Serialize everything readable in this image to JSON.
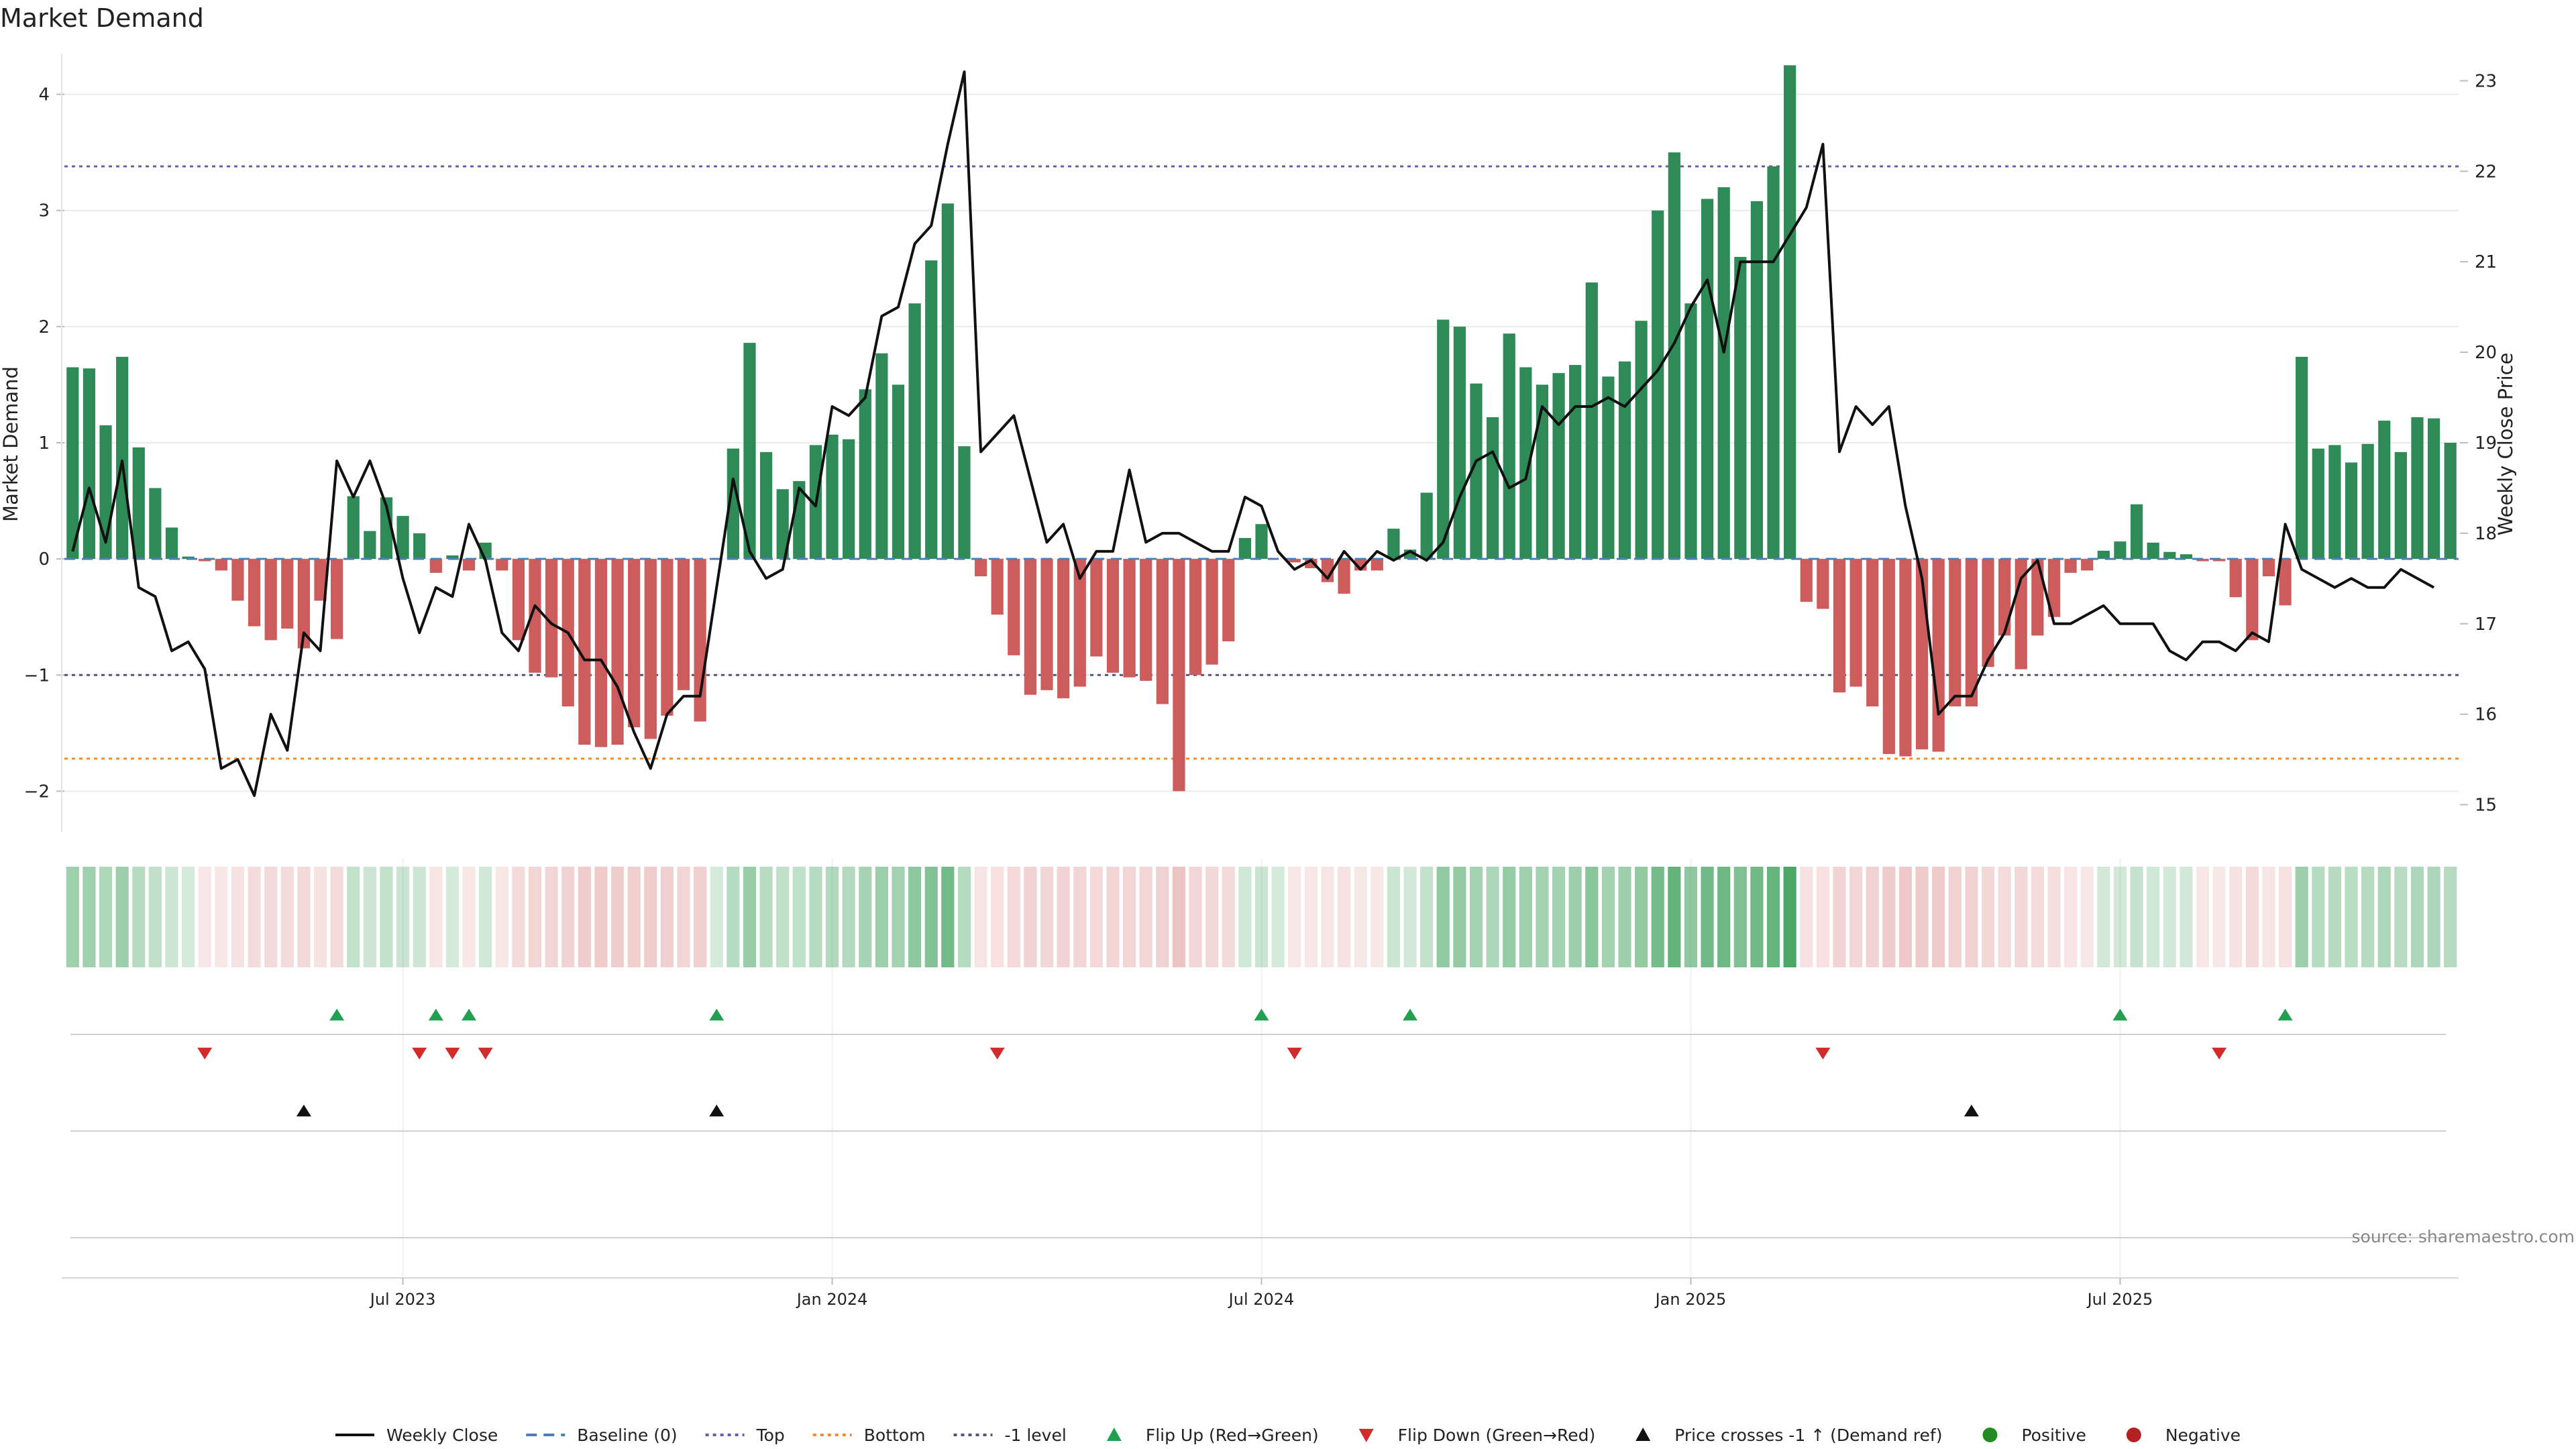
{
  "chart_data": {
    "type": "bar",
    "title": "Market Demand",
    "ylabel_left": "Market Demand",
    "ylabel_right": "Weekly Close Price",
    "source": "source: sharemaestro.com",
    "ylim_left": [
      -2.35,
      4.35
    ],
    "ylim_right": [
      14.7,
      23.3
    ],
    "yticks_left": [
      4,
      3,
      2,
      1,
      0,
      -1,
      -2
    ],
    "ytick_labels_left": [
      "4",
      "3",
      "2",
      "1",
      "0",
      "−1",
      "−2"
    ],
    "yticks_right": [
      23,
      22,
      21,
      20,
      19,
      18,
      17,
      16,
      15
    ],
    "ytick_labels_right": [
      "23",
      "22",
      "21",
      "20",
      "19",
      "18",
      "17",
      "16",
      "15"
    ],
    "reference_lines": {
      "top": 3.38,
      "bottom": -1.72,
      "minus_one": -1.0,
      "baseline": 0
    },
    "x_ticks": [
      {
        "week": 20,
        "label": "Jul 2023"
      },
      {
        "week": 46,
        "label": "Jan 2024"
      },
      {
        "week": 72,
        "label": "Jul 2024"
      },
      {
        "week": 98,
        "label": "Jan 2025"
      },
      {
        "week": 124,
        "label": "Jul 2025"
      }
    ],
    "demand": [
      1.65,
      1.64,
      1.15,
      1.74,
      0.96,
      0.61,
      0.27,
      0.02,
      -0.02,
      -0.1,
      -0.36,
      -0.58,
      -0.7,
      -0.6,
      -0.77,
      -0.36,
      -0.69,
      0.54,
      0.24,
      0.53,
      0.37,
      0.22,
      -0.12,
      0.03,
      -0.1,
      0.14,
      -0.1,
      -0.7,
      -0.98,
      -1.02,
      -1.27,
      -1.6,
      -1.62,
      -1.6,
      -1.45,
      -1.55,
      -1.35,
      -1.13,
      -1.4,
      0.0,
      0.95,
      1.86,
      0.92,
      0.6,
      0.67,
      0.98,
      1.07,
      1.03,
      1.46,
      1.77,
      1.5,
      2.2,
      2.57,
      3.06,
      0.97,
      -0.15,
      -0.48,
      -0.83,
      -1.17,
      -1.13,
      -1.2,
      -1.1,
      -0.84,
      -0.98,
      -1.02,
      -1.05,
      -1.25,
      -2.0,
      -1.0,
      -0.91,
      -0.71,
      0.18,
      0.3,
      0.0,
      -0.03,
      -0.08,
      -0.2,
      -0.3,
      -0.1,
      -0.1,
      0.26,
      0.08,
      0.57,
      2.06,
      2.0,
      1.51,
      1.22,
      1.94,
      1.65,
      1.5,
      1.6,
      1.67,
      2.38,
      1.57,
      1.7,
      2.05,
      3.0,
      3.5,
      2.2,
      3.1,
      3.2,
      2.6,
      3.08,
      3.38,
      4.25,
      -0.37,
      -0.43,
      -1.15,
      -1.1,
      -1.27,
      -1.68,
      -1.7,
      -1.64,
      -1.66,
      -1.27,
      -1.27,
      -0.93,
      -0.66,
      -0.95,
      -0.66,
      -0.5,
      -0.12,
      -0.1,
      0.07,
      0.15,
      0.47,
      0.14,
      0.06,
      0.04,
      -0.02,
      -0.02,
      -0.33,
      -0.7,
      -0.15,
      -0.4,
      1.74,
      0.95,
      0.98,
      0.83,
      0.99,
      1.19,
      0.92,
      1.22,
      1.21,
      1.0
    ],
    "price": [
      17.8,
      18.5,
      17.9,
      18.8,
      17.4,
      17.3,
      16.7,
      16.8,
      16.5,
      15.4,
      15.5,
      15.1,
      16.0,
      15.6,
      16.9,
      16.7,
      18.8,
      18.4,
      18.8,
      18.3,
      17.5,
      16.9,
      17.4,
      17.3,
      18.1,
      17.7,
      16.9,
      16.7,
      17.2,
      17.0,
      16.9,
      16.6,
      16.6,
      16.3,
      15.8,
      15.4,
      16.0,
      16.2,
      16.2,
      17.4,
      18.6,
      17.8,
      17.5,
      17.6,
      18.5,
      18.3,
      19.4,
      19.3,
      19.5,
      20.4,
      20.5,
      21.2,
      21.4,
      22.3,
      23.1,
      18.9,
      19.1,
      19.3,
      18.6,
      17.9,
      18.1,
      17.5,
      17.8,
      17.8,
      18.7,
      17.9,
      18.0,
      18.0,
      17.9,
      17.8,
      17.8,
      18.4,
      18.3,
      17.8,
      17.6,
      17.7,
      17.5,
      17.8,
      17.6,
      17.8,
      17.7,
      17.8,
      17.7,
      17.9,
      18.4,
      18.8,
      18.9,
      18.5,
      18.6,
      19.4,
      19.2,
      19.4,
      19.4,
      19.5,
      19.4,
      19.6,
      19.8,
      20.1,
      20.5,
      20.8,
      20.0,
      21.0,
      21.0,
      21.0,
      21.3,
      21.6,
      22.3,
      18.9,
      19.4,
      19.2,
      19.4,
      18.3,
      17.5,
      16.0,
      16.2,
      16.2,
      16.6,
      16.9,
      17.5,
      17.7,
      17.0,
      17.0,
      17.1,
      17.2,
      17.0,
      17.0,
      17.0,
      16.7,
      16.6,
      16.8,
      16.8,
      16.7,
      16.9,
      16.8,
      18.1,
      17.6,
      17.5,
      17.4,
      17.5,
      17.4,
      17.4,
      17.6,
      17.5,
      17.4
    ],
    "flip_up_weeks": [
      16,
      22,
      24,
      39,
      72,
      81,
      124,
      134
    ],
    "flip_down_weeks": [
      8,
      21,
      23,
      25,
      56,
      74,
      106,
      130
    ],
    "price_cross_weeks": [
      14,
      39,
      115
    ],
    "legend": [
      {
        "key": "weekly_close",
        "label": "Weekly Close"
      },
      {
        "key": "baseline",
        "label": "Baseline (0)"
      },
      {
        "key": "top",
        "label": "Top"
      },
      {
        "key": "bottom",
        "label": "Bottom"
      },
      {
        "key": "minus_one",
        "label": "-1 level"
      },
      {
        "key": "flip_up",
        "label": "Flip Up (Red→Green)"
      },
      {
        "key": "flip_down",
        "label": "Flip Down (Green→Red)"
      },
      {
        "key": "price_cross",
        "label": "Price crosses -1 ↑ (Demand ref)"
      },
      {
        "key": "positive",
        "label": "Positive"
      },
      {
        "key": "negative",
        "label": "Negative"
      }
    ]
  },
  "colors": {
    "positive_bar": "#2e8b57",
    "negative_bar": "#cd5c5c",
    "price_line": "#111111",
    "baseline": "#4f7fb5",
    "top_line": "#6a5fa8",
    "bottom_line": "#f28c28",
    "minus_one_line": "#555577",
    "flip_up": "#22a052",
    "flip_down": "#d12b2b",
    "price_cross": "#111111",
    "positive_dot": "#228b22",
    "negative_dot": "#b22222"
  }
}
